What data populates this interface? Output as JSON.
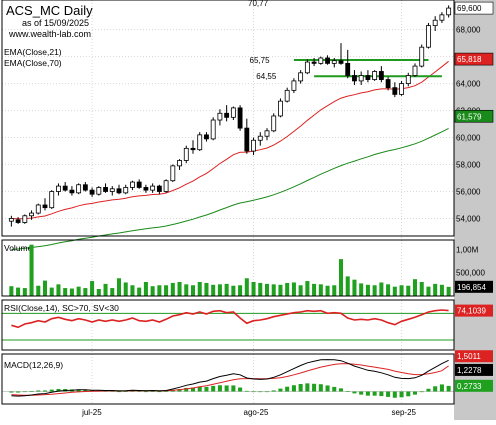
{
  "header": {
    "title": "ACS_MC Daily",
    "as_of": "as of 15/09/2025",
    "website": "www.wealth-lab.com",
    "top_value_label": "70,77"
  },
  "colors": {
    "up_candle": "#ffffff",
    "down_candle": "#000000",
    "ema21": "#dd2222",
    "ema70": "#1a8a1a",
    "support_lines": "#1f9a1f",
    "volume": "#1fa01f",
    "rsi": "#dd2222",
    "rsi_bands": "#1f9a1f",
    "macd": "#000000",
    "macd_signal": "#dd2222",
    "macd_hist": "#1fa01f",
    "axis_panel": "#c8c8c8",
    "price_tag_last": "#ffffff",
    "price_tag_ema21": "#dd2222",
    "price_tag_ema70": "#1a8a1a"
  },
  "chart_data": [
    {
      "panel": "price",
      "type": "candlestick",
      "legend": [
        "EMA(Close,21)",
        "EMA(Close,70)"
      ],
      "y_ticks": [
        "68,000",
        "66,000",
        "64,000",
        "62,000",
        "60,000",
        "58,000",
        "56,000",
        "54,000"
      ],
      "ylim": [
        52.7,
        70.2
      ],
      "x_ticks": [
        "jul-25",
        "ago-25",
        "sep-25"
      ],
      "last_value_labels": {
        "close": "69,600",
        "ema21": "65,818",
        "ema70": "61,579"
      },
      "annotations": [
        "65,75",
        "64,55"
      ],
      "horizontal_levels": [
        65.75,
        64.55
      ],
      "candles": [
        [
          53.8,
          54.2,
          53.4,
          54.0
        ],
        [
          53.9,
          54.1,
          53.6,
          53.7
        ],
        [
          53.7,
          54.3,
          53.6,
          54.2
        ],
        [
          54.2,
          54.6,
          53.9,
          54.4
        ],
        [
          54.4,
          55.1,
          54.3,
          55.0
        ],
        [
          55.0,
          55.5,
          54.6,
          54.8
        ],
        [
          54.8,
          56.1,
          54.7,
          56.0
        ],
        [
          56.0,
          56.6,
          55.7,
          56.4
        ],
        [
          56.4,
          56.7,
          56.0,
          56.1
        ],
        [
          56.1,
          56.4,
          55.7,
          55.9
        ],
        [
          55.9,
          56.6,
          55.8,
          56.5
        ],
        [
          56.5,
          56.7,
          56.0,
          56.1
        ],
        [
          56.1,
          56.3,
          55.6,
          55.8
        ],
        [
          55.8,
          56.4,
          55.7,
          56.3
        ],
        [
          56.3,
          56.6,
          55.9,
          56.0
        ],
        [
          56.0,
          56.4,
          55.7,
          56.2
        ],
        [
          56.2,
          56.5,
          55.8,
          55.9
        ],
        [
          55.9,
          56.5,
          55.8,
          56.3
        ],
        [
          56.3,
          56.8,
          56.1,
          56.7
        ],
        [
          56.7,
          56.9,
          56.2,
          56.3
        ],
        [
          56.3,
          56.5,
          55.9,
          56.1
        ],
        [
          56.1,
          56.6,
          55.9,
          56.4
        ],
        [
          56.4,
          56.5,
          55.8,
          56.0
        ],
        [
          56.0,
          56.9,
          55.9,
          56.8
        ],
        [
          56.8,
          58.0,
          56.7,
          57.9
        ],
        [
          57.9,
          58.4,
          57.6,
          58.3
        ],
        [
          58.3,
          59.4,
          58.1,
          59.2
        ],
        [
          59.2,
          59.8,
          58.8,
          59.1
        ],
        [
          59.1,
          60.4,
          59.0,
          60.2
        ],
        [
          60.2,
          60.4,
          59.7,
          59.9
        ],
        [
          59.9,
          61.5,
          59.8,
          61.3
        ],
        [
          61.3,
          62.1,
          60.9,
          61.8
        ],
        [
          61.8,
          62.4,
          61.2,
          61.5
        ],
        [
          61.5,
          62.3,
          61.3,
          62.2
        ],
        [
          62.2,
          62.4,
          60.5,
          60.7
        ],
        [
          60.7,
          61.4,
          58.8,
          59.0
        ],
        [
          59.0,
          60.0,
          58.7,
          59.8
        ],
        [
          59.8,
          60.4,
          59.4,
          60.1
        ],
        [
          60.1,
          60.7,
          59.8,
          60.5
        ],
        [
          60.5,
          61.8,
          60.4,
          61.6
        ],
        [
          61.6,
          62.9,
          61.5,
          62.7
        ],
        [
          62.7,
          63.7,
          62.6,
          63.5
        ],
        [
          63.5,
          64.4,
          63.3,
          64.2
        ],
        [
          64.2,
          65.0,
          64.0,
          64.8
        ],
        [
          64.8,
          65.8,
          64.7,
          65.6
        ],
        [
          65.6,
          65.9,
          65.3,
          65.5
        ],
        [
          65.5,
          66.0,
          65.4,
          65.9
        ],
        [
          65.9,
          66.1,
          65.4,
          65.5
        ],
        [
          65.5,
          65.9,
          65.2,
          65.7
        ],
        [
          65.7,
          67.0,
          65.4,
          65.5
        ],
        [
          65.5,
          66.5,
          64.4,
          64.6
        ],
        [
          64.6,
          65.0,
          63.9,
          64.2
        ],
        [
          64.2,
          64.9,
          63.9,
          64.6
        ],
        [
          64.6,
          65.0,
          64.1,
          64.3
        ],
        [
          64.3,
          65.0,
          64.2,
          64.9
        ],
        [
          64.9,
          65.3,
          64.1,
          64.3
        ],
        [
          64.3,
          64.5,
          63.5,
          63.7
        ],
        [
          63.7,
          64.1,
          63.0,
          63.2
        ],
        [
          63.2,
          64.2,
          63.1,
          64.0
        ],
        [
          64.0,
          64.8,
          63.8,
          64.6
        ],
        [
          64.6,
          65.5,
          64.5,
          65.3
        ],
        [
          65.3,
          66.9,
          65.2,
          66.7
        ],
        [
          66.7,
          68.5,
          66.6,
          68.3
        ],
        [
          68.3,
          69.0,
          67.9,
          68.7
        ],
        [
          68.7,
          69.3,
          68.5,
          69.1
        ],
        [
          69.1,
          69.8,
          68.9,
          69.6
        ]
      ]
    },
    {
      "panel": "volume",
      "type": "bar",
      "label": "Volume",
      "y_ticks": [
        "1,00M",
        "500,000"
      ],
      "ylim": [
        0,
        1200000
      ],
      "last_value_label": "196,854",
      "values": [
        210000,
        180000,
        170000,
        1100000,
        220000,
        330000,
        180000,
        250000,
        170000,
        160000,
        200000,
        170000,
        320000,
        150000,
        260000,
        170000,
        380000,
        290000,
        230000,
        180000,
        300000,
        210000,
        230000,
        230000,
        280000,
        300000,
        250000,
        230000,
        300000,
        280000,
        240000,
        250000,
        260000,
        220000,
        230000,
        380000,
        300000,
        280000,
        260000,
        250000,
        240000,
        280000,
        290000,
        230000,
        320000,
        260000,
        250000,
        220000,
        230000,
        790000,
        420000,
        350000,
        270000,
        240000,
        230000,
        290000,
        250000,
        200000,
        230000,
        220000,
        360000,
        300000,
        200000,
        260000,
        240000,
        196854
      ]
    },
    {
      "panel": "rsi",
      "type": "line",
      "label": "RSI(Close,14), SC>70, SV<30",
      "levels": [
        70,
        30
      ],
      "ylim": [
        15,
        90
      ],
      "last_value_label": "74,1039",
      "values": [
        52,
        49,
        54,
        56,
        59,
        57,
        62,
        64,
        61,
        59,
        62,
        60,
        57,
        60,
        58,
        60,
        58,
        60,
        63,
        59,
        58,
        60,
        57,
        61,
        66,
        68,
        71,
        69,
        72,
        69,
        73,
        74,
        71,
        72,
        63,
        55,
        59,
        60,
        62,
        65,
        67,
        69,
        71,
        72,
        74,
        73,
        74,
        70,
        71,
        70,
        63,
        60,
        61,
        60,
        62,
        60,
        56,
        53,
        58,
        61,
        64,
        68,
        72,
        74,
        75,
        74.1
      ]
    },
    {
      "panel": "macd",
      "type": "line",
      "label": "MACD(12,26,9)",
      "last_value_labels": [
        "1,5011",
        "1,2278",
        "0,2733"
      ],
      "macd": [
        -0.2,
        -0.22,
        -0.2,
        -0.17,
        -0.12,
        -0.1,
        -0.04,
        0.02,
        0.05,
        0.06,
        0.08,
        0.08,
        0.06,
        0.06,
        0.05,
        0.05,
        0.03,
        0.04,
        0.06,
        0.05,
        0.04,
        0.05,
        0.03,
        0.05,
        0.12,
        0.2,
        0.3,
        0.36,
        0.45,
        0.5,
        0.62,
        0.72,
        0.78,
        0.85,
        0.8,
        0.65,
        0.6,
        0.58,
        0.6,
        0.68,
        0.8,
        0.95,
        1.1,
        1.25,
        1.38,
        1.45,
        1.52,
        1.53,
        1.52,
        1.48,
        1.36,
        1.22,
        1.12,
        1.02,
        0.97,
        0.9,
        0.8,
        0.68,
        0.63,
        0.62,
        0.66,
        0.78,
        0.98,
        1.16,
        1.34,
        1.5
      ],
      "signal": [
        -0.15,
        -0.17,
        -0.18,
        -0.18,
        -0.17,
        -0.15,
        -0.13,
        -0.1,
        -0.07,
        -0.04,
        -0.02,
        0.0,
        0.01,
        0.02,
        0.03,
        0.03,
        0.03,
        0.03,
        0.04,
        0.04,
        0.04,
        0.04,
        0.04,
        0.04,
        0.06,
        0.08,
        0.13,
        0.17,
        0.23,
        0.28,
        0.35,
        0.42,
        0.49,
        0.56,
        0.61,
        0.62,
        0.62,
        0.61,
        0.61,
        0.63,
        0.66,
        0.72,
        0.8,
        0.89,
        0.99,
        1.08,
        1.17,
        1.24,
        1.3,
        1.33,
        1.34,
        1.31,
        1.27,
        1.22,
        1.17,
        1.12,
        1.06,
        0.98,
        0.91,
        0.85,
        0.81,
        0.81,
        0.85,
        0.91,
        1.0,
        1.23
      ],
      "histogram": [
        -0.05,
        -0.05,
        -0.02,
        0.01,
        0.05,
        0.05,
        0.09,
        0.12,
        0.12,
        0.1,
        0.1,
        0.08,
        0.05,
        0.04,
        0.02,
        0.02,
        0.0,
        0.01,
        0.02,
        0.01,
        0.0,
        0.01,
        -0.01,
        0.01,
        0.06,
        0.12,
        0.17,
        0.19,
        0.22,
        0.22,
        0.27,
        0.3,
        0.29,
        0.29,
        0.19,
        0.03,
        -0.02,
        -0.03,
        -0.01,
        0.05,
        0.14,
        0.23,
        0.3,
        0.36,
        0.39,
        0.37,
        0.35,
        0.29,
        0.22,
        0.15,
        0.02,
        -0.09,
        -0.15,
        -0.2,
        -0.2,
        -0.22,
        -0.26,
        -0.3,
        -0.28,
        -0.23,
        -0.15,
        -0.03,
        0.13,
        0.25,
        0.34,
        0.27
      ],
      "ylim": [
        -0.6,
        1.8
      ]
    }
  ]
}
